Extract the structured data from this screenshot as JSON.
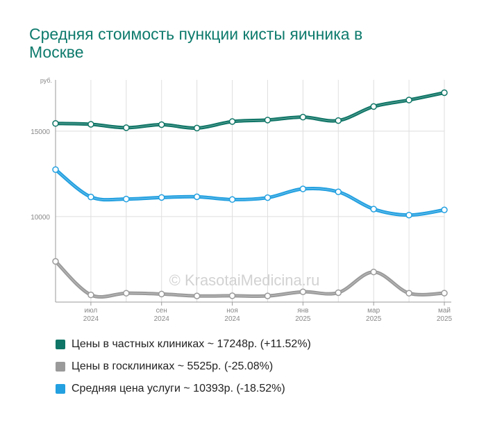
{
  "title": "Средняя стоимость пункции кисты яичника в Москве",
  "watermark": "© KrasotaiMedicina.ru",
  "chart_data": {
    "type": "line",
    "y_unit": "руб.",
    "ylim": [
      5000,
      18000
    ],
    "yticks": [
      10000,
      15000
    ],
    "ytick_labels": [
      "10000",
      "15000"
    ],
    "grid": true,
    "legend_position": "bottom",
    "x_index": [
      0,
      1,
      2,
      3,
      4,
      5,
      6,
      7,
      8,
      9,
      10,
      11
    ],
    "x_tick_index": [
      1,
      3,
      5,
      7,
      9,
      11
    ],
    "x_tick_labels": [
      [
        "июл",
        "2024"
      ],
      [
        "сен",
        "2024"
      ],
      [
        "ноя",
        "2024"
      ],
      [
        "янв",
        "2025"
      ],
      [
        "мар",
        "2025"
      ],
      [
        "май",
        "2025"
      ]
    ],
    "series": [
      {
        "name": "Цены в частных клиниках",
        "legend": "Цены в частных клиниках ~ 17248р. (+11.52%)",
        "color": "#0f7566",
        "values": [
          15450,
          15400,
          15200,
          15380,
          15180,
          15560,
          15650,
          15820,
          15620,
          16440,
          16820,
          17248
        ]
      },
      {
        "name": "Цены в госклиниках",
        "legend": "Цены в госклиниках ~ 5525р. (-25.08%)",
        "color": "#9a9a9a",
        "values": [
          7380,
          5420,
          5520,
          5470,
          5360,
          5370,
          5360,
          5600,
          5550,
          6760,
          5520,
          5525
        ]
      },
      {
        "name": "Средняя цена услуги",
        "legend": "Средняя цена услуги ~ 10393р. (-18.52%)",
        "color": "#23a0e0",
        "values": [
          12750,
          11150,
          11030,
          11120,
          11160,
          11000,
          11110,
          11620,
          11450,
          10440,
          10090,
          10393
        ]
      }
    ]
  }
}
